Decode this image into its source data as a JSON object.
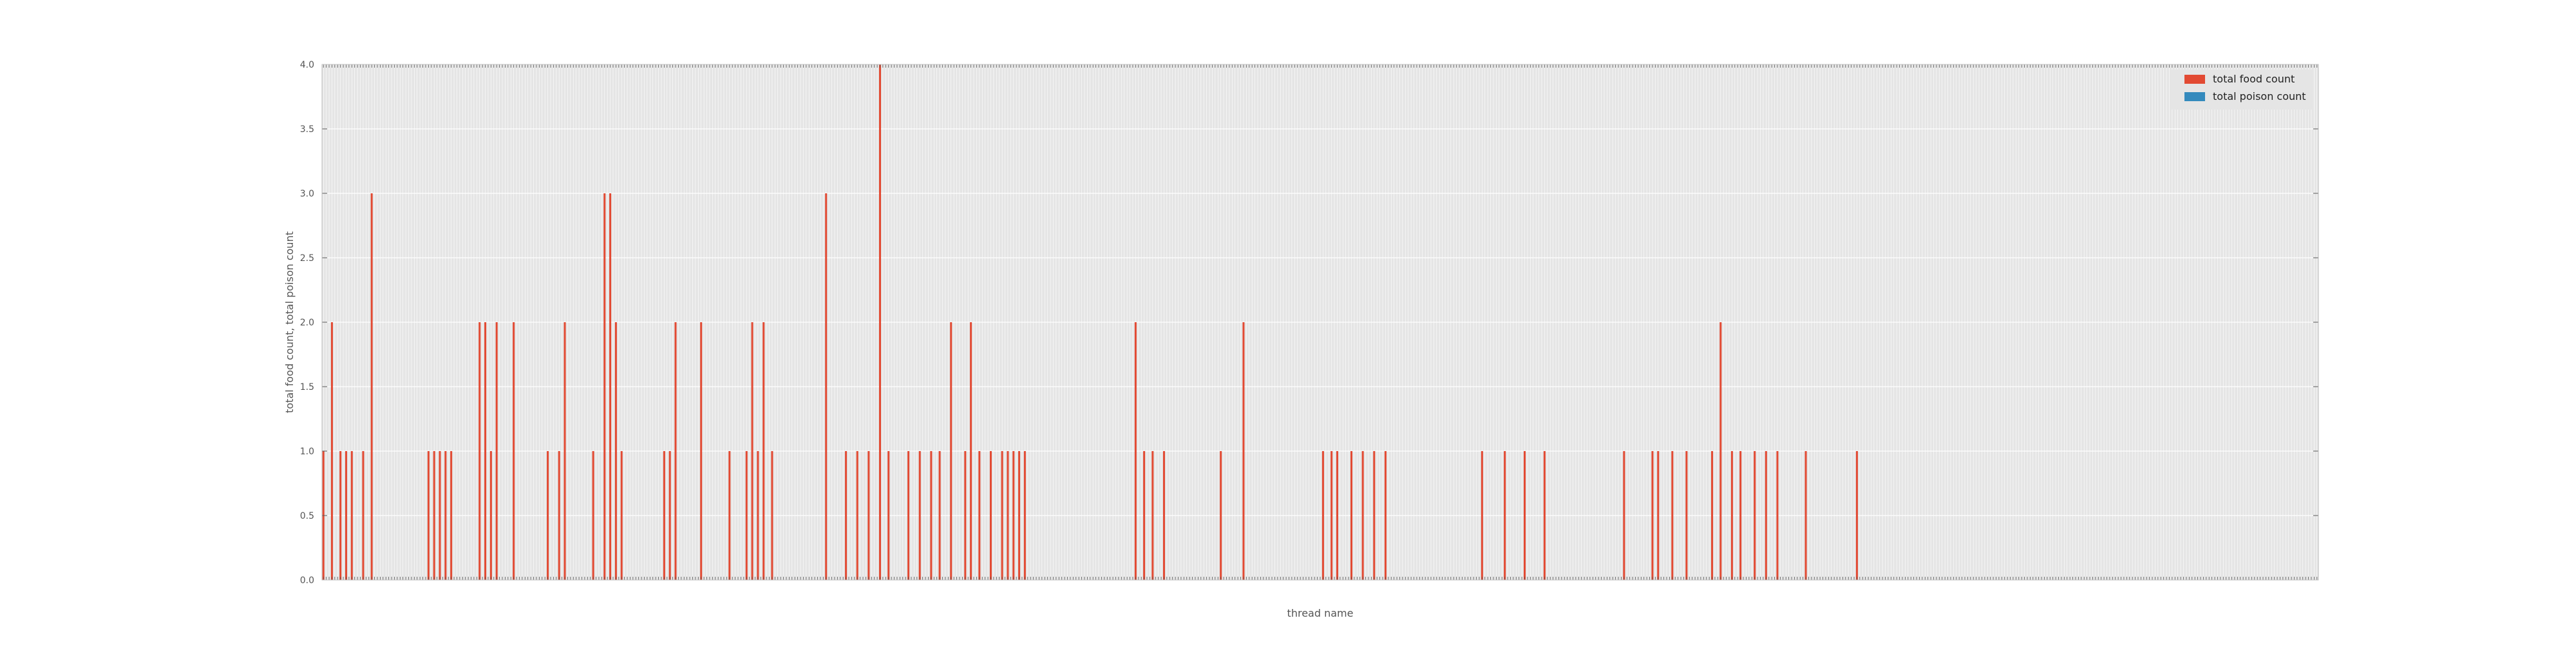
{
  "chart_data": {
    "type": "bar",
    "xlabel": "thread name",
    "ylabel": "total food count, total poison count",
    "ylim": [
      0,
      4
    ],
    "yticks": [
      "0.0",
      "0.5",
      "1.0",
      "1.5",
      "2.0",
      "2.5",
      "3.0",
      "3.5",
      "4.0"
    ],
    "grid": true,
    "legend_position": "top-right",
    "categories_note": "",
    "series": [
      {
        "name": "total food count",
        "color": "#E24A33",
        "values": [
          1,
          0,
          0,
          2,
          0,
          0,
          1,
          0,
          1,
          0,
          1,
          0,
          0,
          0,
          1,
          0,
          0,
          3,
          0,
          0,
          0,
          0,
          0,
          0,
          0,
          0,
          0,
          0,
          0,
          0,
          0,
          0,
          0,
          0,
          0,
          0,
          0,
          1,
          0,
          1,
          0,
          1,
          0,
          1,
          0,
          1,
          0,
          0,
          0,
          0,
          0,
          0,
          0,
          0,
          0,
          2,
          0,
          2,
          0,
          1,
          0,
          2,
          0,
          0,
          0,
          0,
          0,
          2,
          0,
          0,
          0,
          0,
          0,
          0,
          0,
          0,
          0,
          0,
          0,
          1,
          0,
          0,
          0,
          1,
          0,
          2,
          0,
          0,
          0,
          0,
          0,
          0,
          0,
          0,
          0,
          1,
          0,
          0,
          0,
          3,
          0,
          3,
          0,
          2,
          0,
          1,
          0,
          0,
          0,
          0,
          0,
          0,
          0,
          0,
          0,
          0,
          0,
          0,
          0,
          0,
          1,
          0,
          1,
          0,
          2,
          0,
          0,
          0,
          0,
          0,
          0,
          0,
          0,
          2,
          0,
          0,
          0,
          0,
          0,
          0,
          0,
          0,
          0,
          1,
          0,
          0,
          0,
          0,
          0,
          1,
          0,
          2,
          0,
          1,
          0,
          2,
          0,
          0,
          1,
          0,
          0,
          0,
          0,
          0,
          0,
          0,
          0,
          0,
          0,
          0,
          0,
          0,
          0,
          0,
          0,
          0,
          0,
          3,
          0,
          0,
          0,
          0,
          0,
          0,
          1,
          0,
          0,
          0,
          1,
          0,
          0,
          0,
          1,
          0,
          0,
          0,
          4,
          0,
          0,
          1,
          0,
          0,
          0,
          0,
          0,
          0,
          1,
          0,
          0,
          0,
          1,
          0,
          0,
          0,
          1,
          0,
          0,
          1,
          0,
          0,
          0,
          2,
          0,
          0,
          0,
          0,
          1,
          0,
          2,
          0,
          0,
          1,
          0,
          0,
          0,
          1,
          0,
          0,
          0,
          1,
          0,
          1,
          0,
          1,
          0,
          1,
          0,
          1,
          0,
          0,
          0,
          0,
          0,
          0,
          0,
          0,
          0,
          0,
          0,
          0,
          0,
          0,
          0,
          0,
          0,
          0,
          0,
          0,
          0,
          0,
          0,
          0,
          0,
          0,
          0,
          0,
          0,
          0,
          0,
          0,
          0,
          0,
          0,
          0,
          0,
          0,
          2,
          0,
          0,
          1,
          0,
          0,
          1,
          0,
          0,
          0,
          1,
          0,
          0,
          0,
          0,
          0,
          0,
          0,
          0,
          0,
          0,
          0,
          0,
          0,
          0,
          0,
          0,
          0,
          0,
          0,
          1,
          0,
          0,
          0,
          0,
          0,
          0,
          0,
          2,
          0,
          0,
          0,
          0,
          0,
          0,
          0,
          0,
          0,
          0,
          0,
          0,
          0,
          0,
          0,
          0,
          0,
          0,
          0,
          0,
          0,
          0,
          0,
          0,
          0,
          0,
          0,
          1,
          0,
          0,
          1,
          0,
          1,
          0,
          0,
          0,
          0,
          1,
          0,
          0,
          0,
          1,
          0,
          0,
          0,
          1,
          0,
          0,
          0,
          1,
          0,
          0,
          0,
          0,
          0,
          0,
          0,
          0,
          0,
          0,
          0,
          0,
          0,
          0,
          0,
          0,
          0,
          0,
          0,
          0,
          0,
          0,
          0,
          0,
          0,
          0,
          0,
          0,
          0,
          0,
          0,
          0,
          0,
          1,
          0,
          0,
          0,
          0,
          0,
          0,
          0,
          1,
          0,
          0,
          0,
          0,
          0,
          0,
          1,
          0,
          0,
          0,
          0,
          0,
          0,
          1,
          0,
          0,
          0,
          0,
          0,
          0,
          0,
          0,
          0,
          0,
          0,
          0,
          0,
          0,
          0,
          0,
          0,
          0,
          0,
          0,
          0,
          0,
          0,
          0,
          0,
          0,
          0,
          1,
          0,
          0,
          0,
          0,
          0,
          0,
          0,
          0,
          0,
          1,
          0,
          1,
          0,
          0,
          0,
          0,
          1,
          0,
          0,
          0,
          0,
          1,
          0,
          0,
          0,
          0,
          0,
          0,
          0,
          0,
          1,
          0,
          0,
          2,
          0,
          0,
          0,
          1,
          0,
          0,
          1,
          0,
          0,
          0,
          0,
          1,
          0,
          0,
          0,
          1,
          0,
          0,
          0,
          1,
          0,
          0,
          0,
          0,
          0,
          0,
          0,
          0,
          0,
          1,
          0,
          0,
          0,
          0,
          0,
          0,
          0,
          0,
          0,
          0,
          0,
          0,
          0,
          0,
          0,
          0,
          0,
          1,
          0,
          0,
          0,
          0,
          0,
          0,
          0,
          0,
          0,
          0,
          0,
          0,
          0,
          0,
          0,
          0,
          0,
          0,
          0,
          0,
          0,
          0,
          0,
          0,
          0,
          0,
          0,
          0,
          0,
          0,
          0,
          0,
          0,
          0,
          0,
          0,
          0,
          0,
          0,
          0,
          0,
          0,
          0,
          0,
          0,
          0,
          0,
          0,
          0,
          0,
          0,
          0,
          0,
          0,
          0,
          0,
          0,
          0,
          0,
          0,
          0,
          0,
          0,
          0,
          0,
          0,
          0,
          0,
          0,
          0,
          0,
          0,
          0,
          0,
          0,
          0,
          0,
          0,
          0,
          0,
          0,
          0,
          0,
          0,
          0,
          0,
          0,
          0,
          0,
          0,
          0,
          0,
          0,
          0,
          0,
          0,
          0,
          0,
          0,
          0,
          0,
          0,
          0,
          0,
          0,
          0,
          0,
          0,
          0,
          0,
          0,
          0,
          0,
          0,
          0,
          0,
          0,
          0,
          0,
          0,
          0,
          0,
          0,
          0,
          0,
          0,
          0,
          0,
          0,
          0,
          0,
          0,
          0,
          0,
          0,
          0,
          0,
          0,
          0,
          0,
          0,
          0,
          0,
          0,
          0,
          0,
          0,
          0,
          0,
          0,
          0,
          0,
          0,
          0,
          0,
          0,
          0,
          0,
          0,
          0,
          0,
          0
        ]
      },
      {
        "name": "total poison count",
        "color": "#348ABD",
        "values": []
      }
    ]
  }
}
